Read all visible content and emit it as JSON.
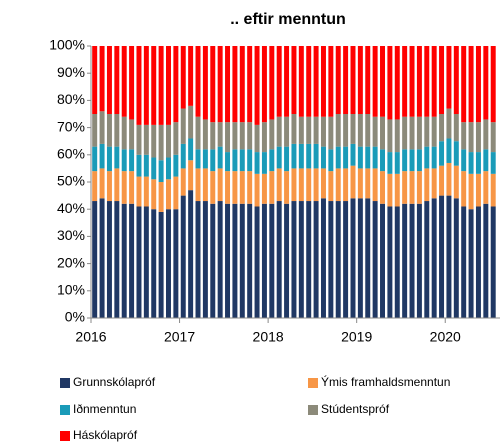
{
  "chart_data": {
    "type": "stacked_bar",
    "title": ".. eftir menntun",
    "categories": [
      "2016",
      null,
      null,
      null,
      null,
      null,
      null,
      null,
      null,
      null,
      null,
      null,
      "2017",
      null,
      null,
      null,
      null,
      null,
      null,
      null,
      null,
      null,
      null,
      null,
      "2018",
      null,
      null,
      null,
      null,
      null,
      null,
      null,
      null,
      null,
      null,
      null,
      "2019",
      null,
      null,
      null,
      null,
      null,
      null,
      null,
      null,
      null,
      null,
      null,
      "2020",
      null,
      null,
      null,
      null,
      null,
      null
    ],
    "series": [
      {
        "name": "Grunnskólapróf",
        "color": "#203864",
        "values": [
          43,
          44,
          43,
          43,
          42,
          42,
          41,
          41,
          40,
          39,
          40,
          40,
          45,
          47,
          43,
          43,
          42,
          43,
          42,
          42,
          42,
          42,
          41,
          42,
          42,
          43,
          42,
          43,
          43,
          43,
          43,
          44,
          43,
          43,
          43,
          44,
          44,
          44,
          43,
          42,
          41,
          41,
          42,
          42,
          42,
          43,
          44,
          45,
          45,
          44,
          41,
          40,
          41,
          42,
          41
        ]
      },
      {
        "name": "Ýmis framhaldsmenntun",
        "color": "#f79646",
        "values": [
          11,
          11,
          11,
          12,
          12,
          12,
          11,
          11,
          11,
          11,
          11,
          12,
          10,
          11,
          12,
          12,
          12,
          12,
          12,
          12,
          12,
          12,
          12,
          11,
          12,
          12,
          12,
          12,
          12,
          12,
          12,
          11,
          11,
          12,
          12,
          12,
          11,
          11,
          12,
          12,
          12,
          12,
          12,
          12,
          12,
          12,
          11,
          11,
          12,
          12,
          13,
          13,
          12,
          12,
          12
        ]
      },
      {
        "name": "Iðnmenntun",
        "color": "#1a9bb8",
        "values": [
          9,
          9,
          9,
          8,
          8,
          8,
          8,
          8,
          8,
          8,
          8,
          8,
          9,
          8,
          7,
          7,
          8,
          8,
          7,
          8,
          8,
          8,
          8,
          8,
          8,
          8,
          9,
          9,
          9,
          9,
          9,
          8,
          8,
          8,
          8,
          8,
          8,
          8,
          8,
          8,
          8,
          8,
          8,
          8,
          8,
          8,
          8,
          9,
          9,
          9,
          8,
          8,
          8,
          8,
          8
        ]
      },
      {
        "name": "Stúdentspróf",
        "color": "#8c8a7a",
        "values": [
          12,
          12,
          12,
          12,
          12,
          11,
          11,
          11,
          12,
          13,
          12,
          12,
          13,
          12,
          12,
          11,
          10,
          9,
          11,
          10,
          10,
          10,
          10,
          11,
          11,
          11,
          11,
          11,
          10,
          10,
          10,
          11,
          12,
          12,
          12,
          11,
          12,
          12,
          11,
          12,
          12,
          12,
          12,
          12,
          12,
          11,
          11,
          10,
          11,
          10,
          10,
          11,
          11,
          11,
          11
        ]
      },
      {
        "name": "Háskólapróf",
        "color": "#ff0000",
        "values": [
          25,
          24,
          25,
          25,
          26,
          27,
          29,
          29,
          29,
          29,
          29,
          28,
          23,
          22,
          26,
          27,
          28,
          28,
          28,
          28,
          28,
          28,
          29,
          28,
          27,
          26,
          26,
          25,
          26,
          26,
          26,
          26,
          26,
          25,
          25,
          25,
          25,
          25,
          26,
          26,
          27,
          27,
          26,
          26,
          26,
          26,
          26,
          25,
          23,
          25,
          28,
          28,
          28,
          27,
          28
        ]
      }
    ],
    "ylim": [
      0,
      100
    ],
    "yticks": [
      {
        "value": 0,
        "label": "0%"
      },
      {
        "value": 10,
        "label": "10%"
      },
      {
        "value": 20,
        "label": "20%"
      },
      {
        "value": 30,
        "label": "30%"
      },
      {
        "value": 40,
        "label": "40%"
      },
      {
        "value": 50,
        "label": "50%"
      },
      {
        "value": 60,
        "label": "60%"
      },
      {
        "value": 70,
        "label": "70%"
      },
      {
        "value": 80,
        "label": "80%"
      },
      {
        "value": 90,
        "label": "90%"
      },
      {
        "value": 100,
        "label": "100%"
      }
    ],
    "grid": false
  }
}
